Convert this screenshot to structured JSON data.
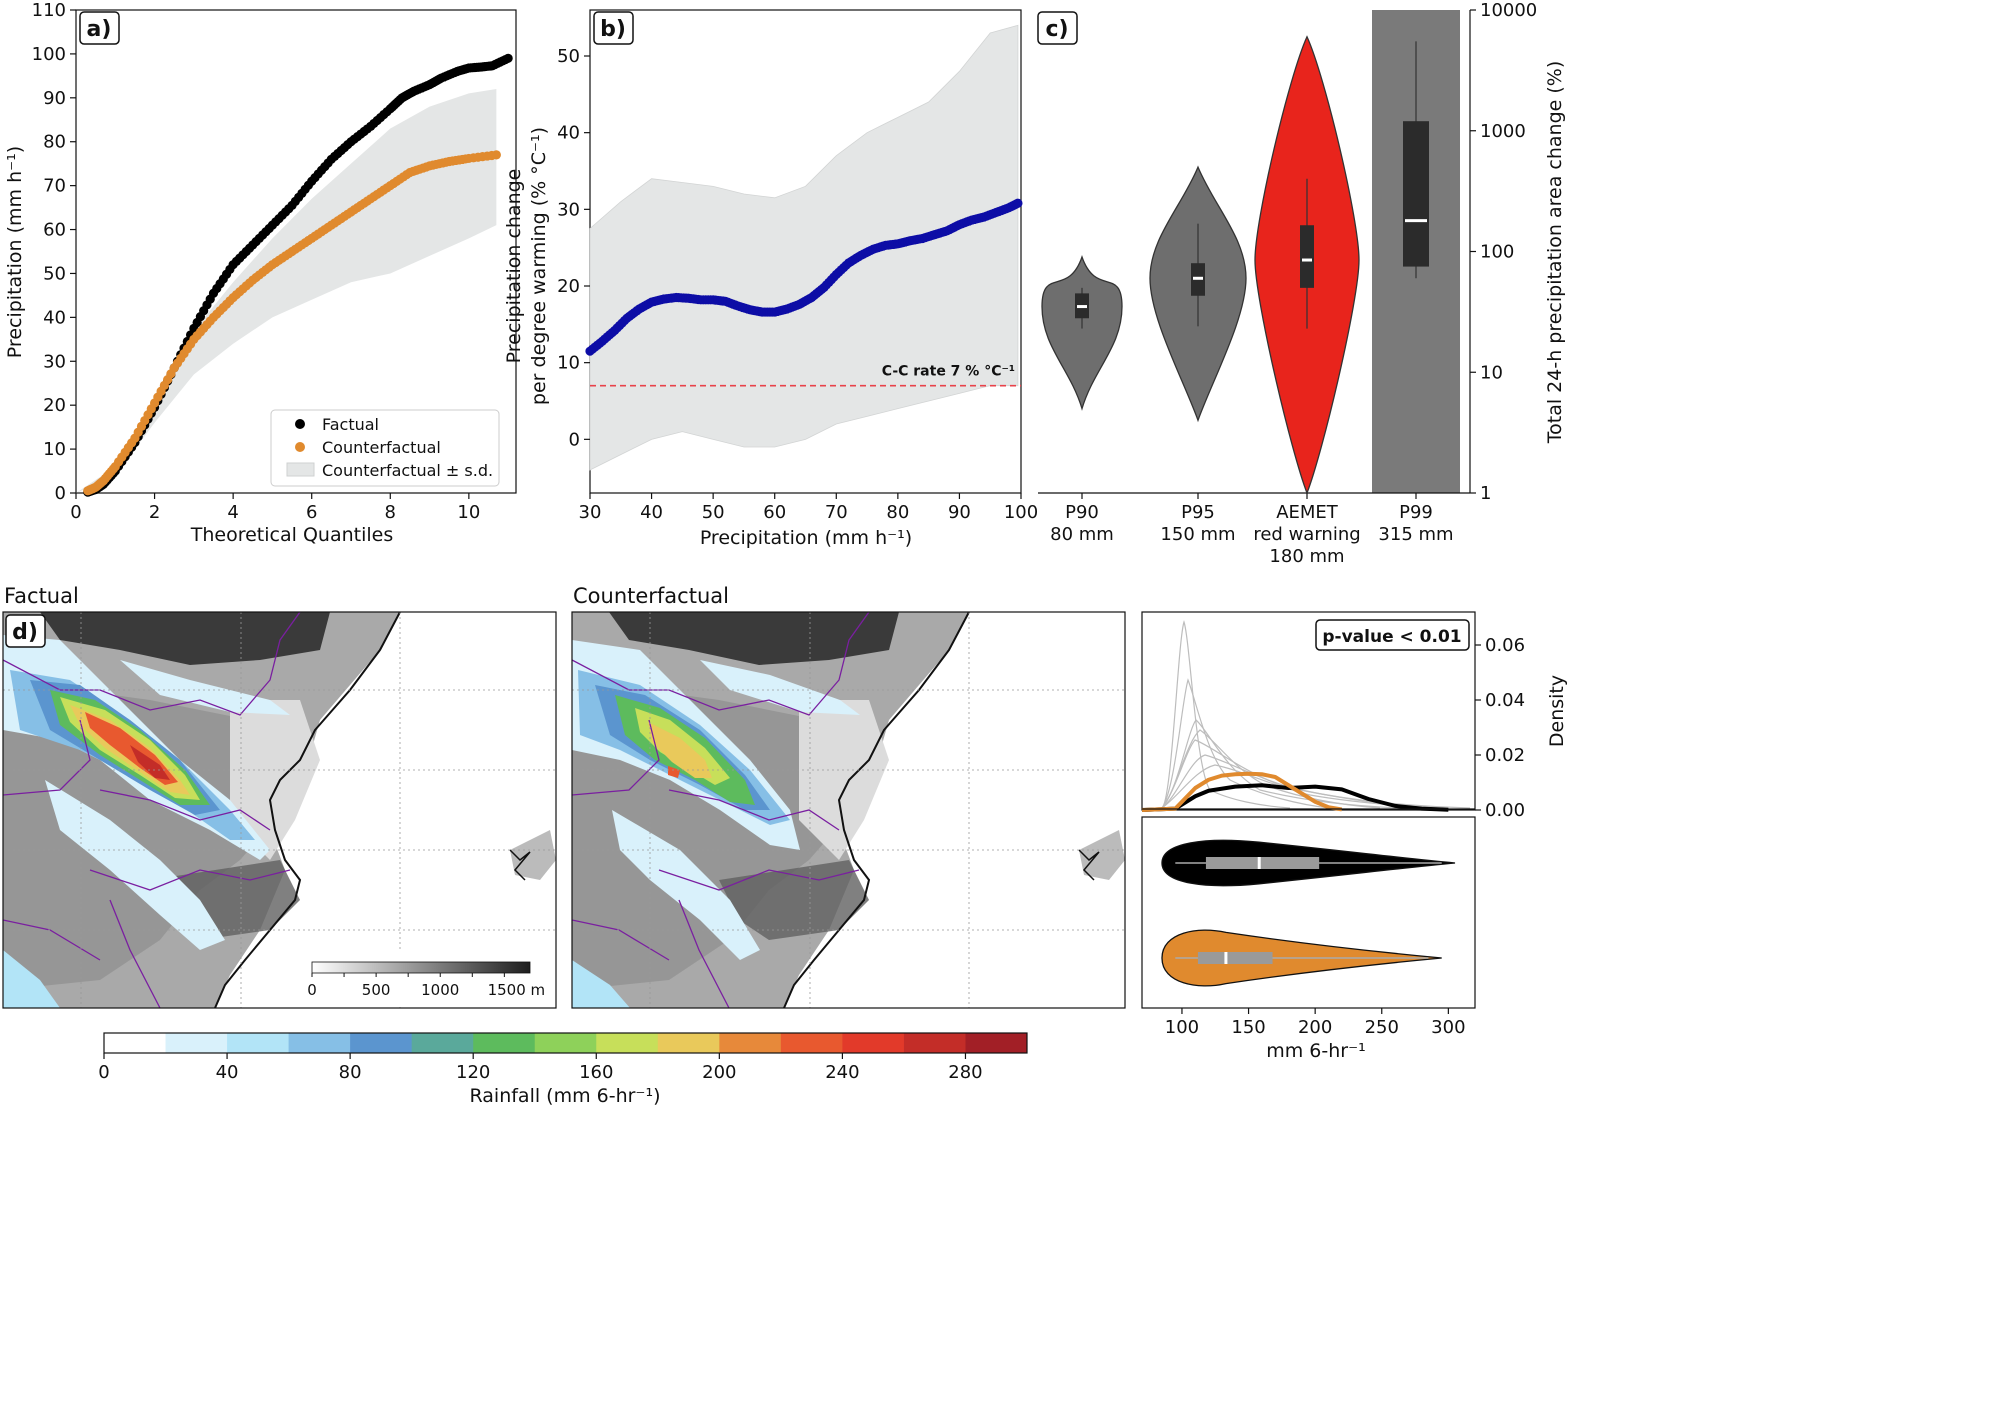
{
  "panel_labels": {
    "a": "a)",
    "b": "b)",
    "c": "c)",
    "d": "d)"
  },
  "map_titles": {
    "factual": "Factual",
    "counterfactual": "Counterfactual"
  },
  "colors": {
    "factual": "#000000",
    "counterfactual": "#e08a2e",
    "band": "#e4e6e6",
    "blue": "#0d0da6",
    "cc_rate": "#e8424a",
    "violin_grey": "#6e6e6e",
    "violin_red": "#e8241c"
  },
  "chart_data": [
    {
      "id": "a",
      "type": "scatter",
      "title": "",
      "xlabel": "Theoretical Quantiles",
      "ylabel": "Precipitation (mm h⁻¹)",
      "xlim": [
        0,
        11.2
      ],
      "ylim": [
        0,
        110
      ],
      "xticks": [
        0,
        2,
        4,
        6,
        8,
        10
      ],
      "yticks": [
        0,
        10,
        20,
        30,
        40,
        50,
        60,
        70,
        80,
        90,
        100,
        110
      ],
      "legend": {
        "position": "lower-right",
        "entries": [
          "Factual",
          "Counterfactual",
          "Counterfactual ± s.d."
        ]
      },
      "series": [
        {
          "name": "Factual",
          "x": [
            0.3,
            0.5,
            0.7,
            1.0,
            1.5,
            2.0,
            2.5,
            3.0,
            3.5,
            4.0,
            4.5,
            5.0,
            5.5,
            6.0,
            6.5,
            7.0,
            7.5,
            8.0,
            8.3,
            8.6,
            9.0,
            9.3,
            9.7,
            10.0,
            10.3,
            10.6,
            11.0
          ],
          "y": [
            0.2,
            0.8,
            2.0,
            5.0,
            11.5,
            19.5,
            28.5,
            37.5,
            45.5,
            52.0,
            56.5,
            61.0,
            65.5,
            71.0,
            76.0,
            80.0,
            83.5,
            87.5,
            90.0,
            91.5,
            93.0,
            94.5,
            96.0,
            96.8,
            97.0,
            97.3,
            99.0
          ]
        },
        {
          "name": "Counterfactual",
          "x": [
            0.3,
            0.5,
            0.7,
            1.0,
            1.5,
            2.0,
            2.5,
            3.0,
            3.5,
            4.0,
            4.5,
            5.0,
            5.5,
            6.0,
            6.5,
            7.0,
            7.5,
            8.0,
            8.5,
            9.0,
            9.5,
            10.0,
            10.7
          ],
          "y": [
            0.5,
            1.3,
            2.8,
            6.0,
            12.5,
            20.5,
            28.5,
            35.0,
            40.0,
            44.5,
            48.5,
            52.0,
            55.0,
            58.0,
            61.0,
            64.0,
            67.0,
            70.0,
            73.0,
            74.5,
            75.5,
            76.2,
            77.0
          ]
        },
        {
          "name": "Counterfactual ± s.d.",
          "type": "band",
          "x": [
            0,
            1,
            2,
            3,
            4,
            5,
            6,
            7,
            8,
            9,
            10,
            10.7
          ],
          "upper": [
            0,
            6,
            20,
            37,
            48,
            58,
            67,
            75,
            83,
            88,
            91,
            92
          ],
          "lower": [
            0,
            4,
            16,
            27,
            34,
            40,
            44,
            48,
            50,
            54,
            58,
            61
          ]
        }
      ]
    },
    {
      "id": "b",
      "type": "scatter",
      "title": "",
      "xlabel": "Precipitation (mm h⁻¹)",
      "ylabel": "Precipitation change per degree warming (% °C⁻¹)",
      "xlim": [
        30,
        100
      ],
      "ylim": [
        -7,
        56
      ],
      "xticks": [
        30,
        40,
        50,
        60,
        70,
        80,
        90,
        100
      ],
      "yticks": [
        0,
        10,
        20,
        30,
        40,
        50
      ],
      "annotation": "C-C rate 7 % °C⁻¹",
      "reference_line": 7,
      "series": [
        {
          "name": "",
          "x": [
            30,
            32,
            34,
            36,
            38,
            40,
            42,
            44,
            46,
            48,
            50,
            52,
            54,
            56,
            58,
            60,
            62,
            64,
            66,
            68,
            70,
            72,
            74,
            76,
            78,
            80,
            82,
            84,
            86,
            88,
            90,
            92,
            94,
            96,
            98,
            99.5
          ],
          "y": [
            11.5,
            12.8,
            14.2,
            15.8,
            17.0,
            17.9,
            18.3,
            18.5,
            18.4,
            18.2,
            18.2,
            18.0,
            17.4,
            16.9,
            16.6,
            16.6,
            17.0,
            17.6,
            18.5,
            19.8,
            21.5,
            23.0,
            24.0,
            24.8,
            25.3,
            25.5,
            25.9,
            26.2,
            26.7,
            27.2,
            28.0,
            28.6,
            29.0,
            29.6,
            30.2,
            30.8
          ]
        },
        {
          "name": "",
          "type": "band",
          "x": [
            30,
            35,
            40,
            45,
            50,
            55,
            60,
            65,
            70,
            75,
            80,
            85,
            90,
            95,
            99.5
          ],
          "upper": [
            27.5,
            31,
            34,
            33.5,
            33,
            32,
            31.5,
            33,
            37,
            40,
            42,
            44,
            48,
            53,
            54
          ],
          "lower": [
            -4,
            -2,
            0,
            1,
            0,
            -1,
            -1,
            0,
            2,
            3,
            4,
            5,
            6,
            7,
            7
          ]
        }
      ]
    },
    {
      "id": "c",
      "type": "violin",
      "title": "",
      "ylabel": "Total 24-h precipitation area change (%)",
      "yscale": "log",
      "ylim": [
        1,
        10000
      ],
      "yticks": [
        1,
        10,
        100,
        1000,
        10000
      ],
      "categories": [
        "P90\n80 mm",
        "P95\n150 mm",
        "AEMET\nred warning\n180 mm",
        "P99\n315 mm"
      ],
      "medians": [
        35,
        60,
        85,
        180
      ],
      "quartiles": [
        [
          28,
          45
        ],
        [
          43,
          80
        ],
        [
          50,
          165
        ],
        [
          75,
          1200
        ]
      ],
      "whiskers": [
        [
          23,
          50
        ],
        [
          24,
          170
        ],
        [
          23,
          400
        ],
        [
          60,
          5500
        ]
      ],
      "extent": [
        [
          5,
          90
        ],
        [
          4,
          500
        ],
        [
          1,
          6000
        ],
        [
          1,
          10000
        ]
      ]
    },
    {
      "id": "d-density",
      "type": "line",
      "title": "",
      "ylabel": "Density",
      "annotation": "p-value < 0.01",
      "xlim": [
        70,
        320
      ],
      "ylim": [
        0,
        0.072
      ],
      "yticks": [
        0.0,
        0.02,
        0.04,
        0.06
      ],
      "series": [
        {
          "name": "Factual",
          "x": [
            95,
            100,
            110,
            120,
            140,
            160,
            180,
            200,
            220,
            240,
            260,
            280,
            300
          ],
          "y": [
            0.0005,
            0.002,
            0.005,
            0.007,
            0.0085,
            0.009,
            0.008,
            0.0085,
            0.0075,
            0.004,
            0.0015,
            0.0005,
            0.0001
          ]
        },
        {
          "name": "Counterfactual",
          "x": [
            95,
            100,
            110,
            120,
            130,
            140,
            150,
            160,
            170,
            180,
            190,
            200,
            210,
            220
          ],
          "y": [
            0.0005,
            0.003,
            0.008,
            0.011,
            0.0125,
            0.013,
            0.0132,
            0.013,
            0.012,
            0.009,
            0.006,
            0.003,
            0.001,
            0.0002
          ]
        }
      ]
    },
    {
      "id": "d-violin",
      "type": "violin",
      "title": "",
      "xlabel": "mm 6-hr⁻¹",
      "xlim": [
        70,
        320
      ],
      "xticks": [
        100,
        150,
        200,
        250,
        300
      ],
      "series": [
        {
          "name": "Factual",
          "median": 158,
          "q1": 118,
          "q3": 203,
          "min": 95,
          "max": 305
        },
        {
          "name": "Counterfactual",
          "median": 133,
          "q1": 112,
          "q3": 168,
          "min": 95,
          "max": 295
        }
      ]
    },
    {
      "id": "colorbar",
      "type": "table",
      "title": "",
      "label": "Rainfall (mm 6-hr⁻¹)",
      "ticks": [
        0,
        40,
        80,
        120,
        160,
        200,
        240,
        280
      ],
      "range": [
        0,
        300
      ],
      "colors": [
        "#ffffff",
        "#d9f1fb",
        "#b2e4f7",
        "#86bfe6",
        "#5b95cf",
        "#5aa99b",
        "#5dbb5d",
        "#8ed15a",
        "#c7df5a",
        "#e9c95b",
        "#e7893a",
        "#e8592f",
        "#e23a2a",
        "#c32d28",
        "#a21f26"
      ]
    },
    {
      "id": "elevation-bar",
      "type": "table",
      "title": "",
      "ticks": [
        "0",
        "500",
        "1000",
        "1500 m"
      ],
      "range": [
        0,
        1700
      ]
    }
  ]
}
